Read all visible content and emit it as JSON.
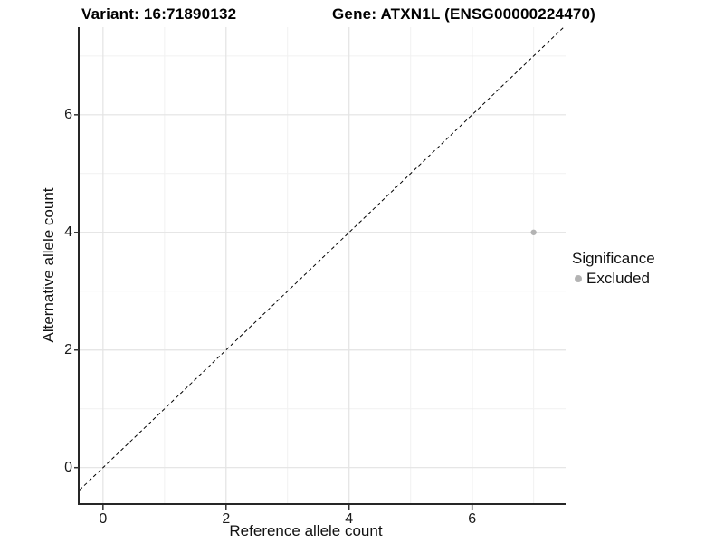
{
  "titles": {
    "variant": "Variant: 16:71890132",
    "gene": "Gene: ATXN1L (ENSG00000224470)"
  },
  "chart_data": {
    "type": "scatter",
    "title_left": "Variant: 16:71890132",
    "title_right": "Gene: ATXN1L (ENSG00000224470)",
    "xlabel": "Reference allele count",
    "ylabel": "Alternative allele count",
    "xlim": [
      -0.38,
      7.52
    ],
    "ylim": [
      -0.62,
      7.49
    ],
    "xticks": [
      0,
      2,
      4,
      6
    ],
    "yticks": [
      0,
      2,
      4,
      6
    ],
    "xticks_minor": [
      1,
      3,
      5,
      7
    ],
    "yticks_minor": [
      1,
      3,
      5,
      7
    ],
    "grid": true,
    "identity_line": {
      "style": "dashed",
      "equation": "y = x"
    },
    "series": [
      {
        "name": "Excluded",
        "color": "#b3b3b3",
        "points": [
          {
            "x": 7,
            "y": 4
          }
        ]
      }
    ],
    "legend": {
      "title": "Significance",
      "position": "right",
      "items": [
        {
          "label": "Excluded",
          "color": "#b3b3b3"
        }
      ]
    }
  },
  "colors": {
    "background": "#ffffff",
    "grid_major": "#e3e3e3",
    "grid_minor": "#f1f1f1",
    "axis_line": "#262626",
    "tick_mark": "#333333",
    "dashed_line": "#000000",
    "point": "#b3b3b3"
  }
}
